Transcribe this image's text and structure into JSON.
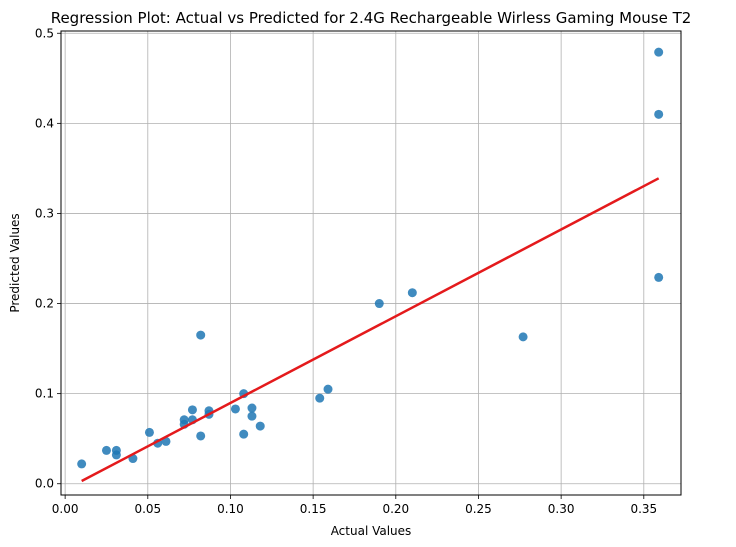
{
  "chart_data": {
    "type": "scatter",
    "title": "Regression Plot: Actual vs Predicted for 2.4G Rechargeable Wirless Gaming Mouse T2",
    "xlabel": "Actual Values",
    "ylabel": "Predicted Values",
    "xlim": [
      -0.0025,
      0.3725
    ],
    "ylim": [
      -0.0125,
      0.5025
    ],
    "xticks": [
      0.0,
      0.05,
      0.1,
      0.15,
      0.2,
      0.25,
      0.3,
      0.35
    ],
    "xtick_labels": [
      "0.00",
      "0.05",
      "0.10",
      "0.15",
      "0.20",
      "0.25",
      "0.30",
      "0.35"
    ],
    "yticks": [
      0.0,
      0.1,
      0.2,
      0.3,
      0.4,
      0.5
    ],
    "ytick_labels": [
      "0.0",
      "0.1",
      "0.2",
      "0.3",
      "0.4",
      "0.5"
    ],
    "grid": true,
    "legend": "none",
    "point_color": "#1f77b4",
    "line_color": "#e41a1c",
    "points": [
      [
        0.01,
        0.022
      ],
      [
        0.025,
        0.037
      ],
      [
        0.031,
        0.037
      ],
      [
        0.031,
        0.032
      ],
      [
        0.041,
        0.028
      ],
      [
        0.051,
        0.057
      ],
      [
        0.056,
        0.045
      ],
      [
        0.061,
        0.047
      ],
      [
        0.072,
        0.071
      ],
      [
        0.072,
        0.066
      ],
      [
        0.077,
        0.082
      ],
      [
        0.077,
        0.071
      ],
      [
        0.082,
        0.053
      ],
      [
        0.082,
        0.165
      ],
      [
        0.087,
        0.081
      ],
      [
        0.087,
        0.077
      ],
      [
        0.103,
        0.083
      ],
      [
        0.108,
        0.1
      ],
      [
        0.108,
        0.055
      ],
      [
        0.113,
        0.084
      ],
      [
        0.113,
        0.075
      ],
      [
        0.118,
        0.064
      ],
      [
        0.154,
        0.095
      ],
      [
        0.159,
        0.105
      ],
      [
        0.19,
        0.2
      ],
      [
        0.21,
        0.212
      ],
      [
        0.277,
        0.163
      ],
      [
        0.359,
        0.479
      ],
      [
        0.359,
        0.41
      ],
      [
        0.359,
        0.229
      ]
    ],
    "regression_line": {
      "x": [
        0.01,
        0.359
      ],
      "y": [
        0.003,
        0.339
      ]
    }
  }
}
